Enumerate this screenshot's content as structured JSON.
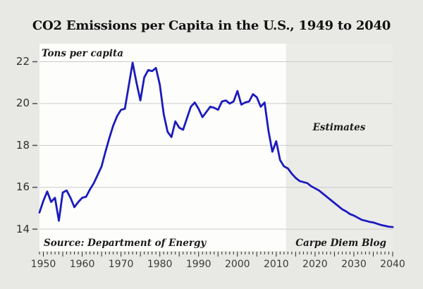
{
  "title": "CO2 Emissions per Capita in the U.S., 1949 to 2040",
  "colors": {
    "page_bg": "#e8e8e5",
    "plot_bg": "#fdfdfb",
    "estimates_band": "#ebebe8",
    "grid": "#cbcbcb",
    "line": "#1b1bbe",
    "tick": "#2a2a2a"
  },
  "annotations": {
    "y_axis_label": "Tons per capita",
    "estimates": "Estimates",
    "source": "Source: Department of Energy",
    "credit": "Carpe Diem Blog"
  },
  "chart_data": {
    "type": "line",
    "title": "CO2 Emissions per Capita in the U.S., 1949 to 2040",
    "xlabel": "",
    "ylabel": "Tons per capita",
    "xlim": [
      1949,
      2040
    ],
    "ylim": [
      12.96,
      22.86
    ],
    "yticks": [
      14,
      16,
      18,
      20,
      22
    ],
    "xticks": [
      1950,
      1960,
      1970,
      1980,
      1990,
      2000,
      2010,
      2020,
      2030,
      2040
    ],
    "minor_tick_step_years": 1,
    "major_tick_step_years": 5,
    "grid": "horizontal",
    "legend_position": "none",
    "estimates_band_start_year": 2012.5,
    "series": [
      {
        "name": "CO2 emissions per capita (tons)",
        "x": [
          1949,
          1950,
          1951,
          1952,
          1953,
          1954,
          1955,
          1956,
          1957,
          1958,
          1959,
          1960,
          1961,
          1962,
          1963,
          1964,
          1965,
          1966,
          1967,
          1968,
          1969,
          1970,
          1971,
          1972,
          1973,
          1974,
          1975,
          1976,
          1977,
          1978,
          1979,
          1980,
          1981,
          1982,
          1983,
          1984,
          1985,
          1986,
          1987,
          1988,
          1989,
          1990,
          1991,
          1992,
          1993,
          1994,
          1995,
          1996,
          1997,
          1998,
          1999,
          2000,
          2001,
          2002,
          2003,
          2004,
          2005,
          2006,
          2007,
          2008,
          2009,
          2010,
          2011,
          2012,
          2013,
          2014,
          2015,
          2016,
          2017,
          2018,
          2019,
          2020,
          2021,
          2022,
          2023,
          2024,
          2025,
          2026,
          2027,
          2028,
          2029,
          2030,
          2031,
          2032,
          2033,
          2034,
          2035,
          2036,
          2037,
          2038,
          2039,
          2040
        ],
        "values": [
          14.8,
          15.35,
          15.8,
          15.3,
          15.5,
          14.4,
          15.75,
          15.85,
          15.5,
          15.05,
          15.3,
          15.5,
          15.55,
          15.9,
          16.2,
          16.6,
          17.0,
          17.7,
          18.35,
          18.95,
          19.4,
          19.7,
          19.75,
          20.85,
          21.95,
          21.0,
          20.15,
          21.25,
          21.6,
          21.55,
          21.7,
          20.9,
          19.5,
          18.65,
          18.4,
          19.15,
          18.85,
          18.75,
          19.3,
          19.85,
          20.05,
          19.75,
          19.35,
          19.6,
          19.85,
          19.8,
          19.7,
          20.1,
          20.15,
          20.0,
          20.1,
          20.6,
          19.95,
          20.05,
          20.1,
          20.45,
          20.3,
          19.85,
          20.05,
          18.7,
          17.7,
          18.2,
          17.3,
          17.0,
          16.9,
          16.65,
          16.45,
          16.3,
          16.25,
          16.2,
          16.05,
          15.95,
          15.85,
          15.7,
          15.55,
          15.4,
          15.25,
          15.1,
          14.95,
          14.85,
          14.72,
          14.65,
          14.55,
          14.45,
          14.4,
          14.35,
          14.32,
          14.26,
          14.2,
          14.16,
          14.12,
          14.1
        ]
      }
    ]
  }
}
